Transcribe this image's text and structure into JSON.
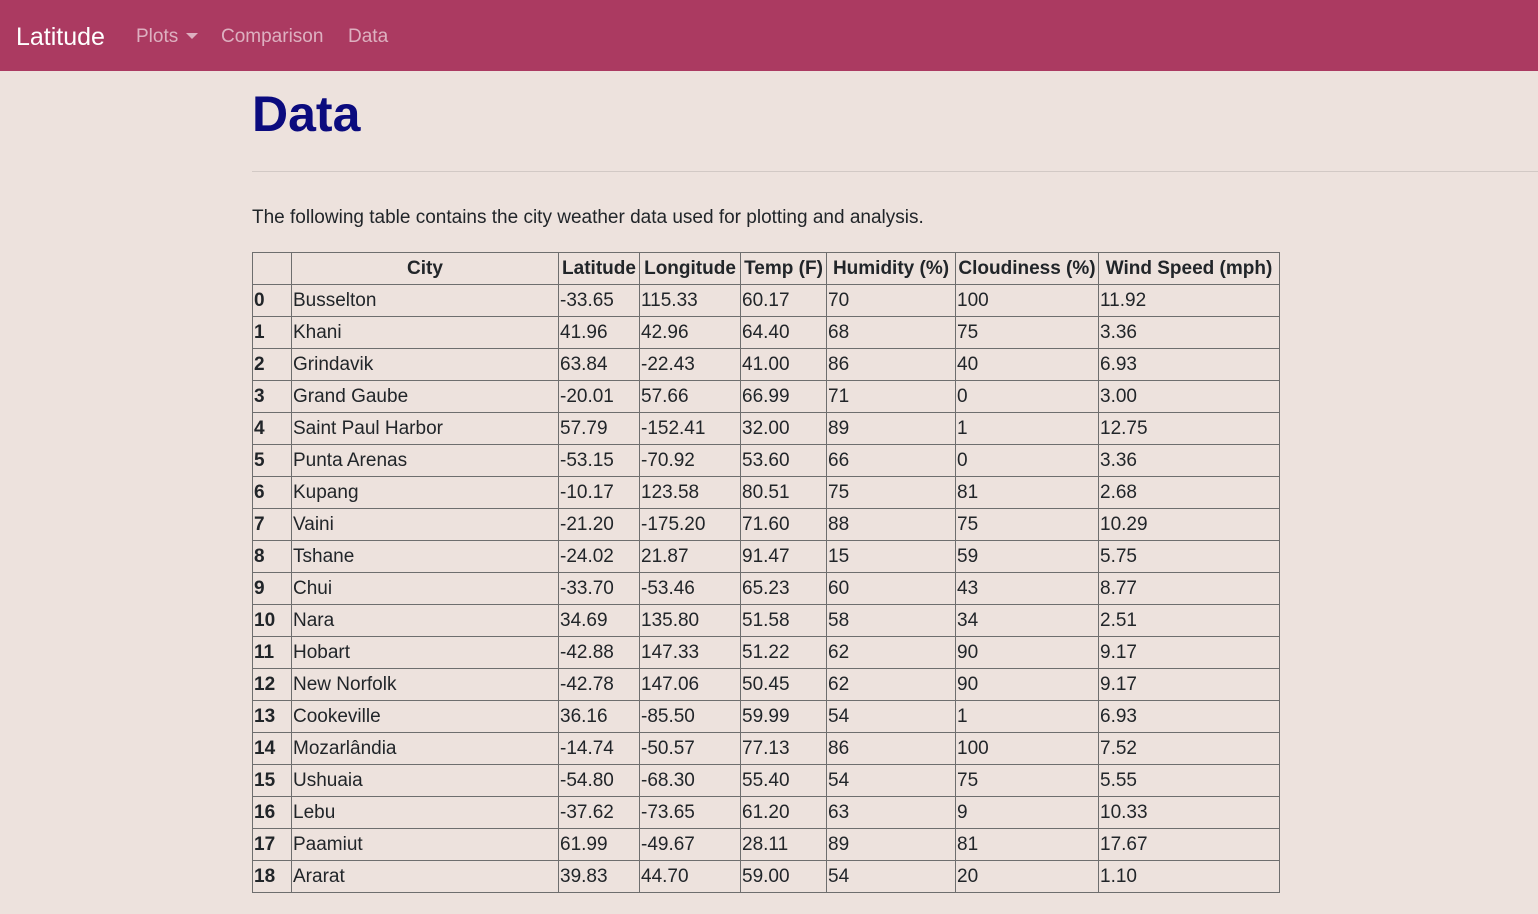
{
  "navbar": {
    "brand": "Latitude",
    "links": [
      {
        "label": "Plots"
      },
      {
        "label": "Comparison"
      },
      {
        "label": "Data"
      }
    ]
  },
  "page": {
    "title": "Data",
    "intro": "The following table contains the city weather data used for plotting and analysis."
  },
  "table": {
    "columns": [
      "",
      "City",
      "Latitude",
      "Longitude",
      "Temp (F)",
      "Humidity (%)",
      "Cloudiness (%)",
      "Wind Speed (mph)"
    ],
    "rows": [
      [
        "0",
        "Busselton",
        "-33.65",
        "115.33",
        "60.17",
        "70",
        "100",
        "11.92"
      ],
      [
        "1",
        "Khani",
        "41.96",
        "42.96",
        "64.40",
        "68",
        "75",
        "3.36"
      ],
      [
        "2",
        "Grindavik",
        "63.84",
        "-22.43",
        "41.00",
        "86",
        "40",
        "6.93"
      ],
      [
        "3",
        "Grand Gaube",
        "-20.01",
        "57.66",
        "66.99",
        "71",
        "0",
        "3.00"
      ],
      [
        "4",
        "Saint Paul Harbor",
        "57.79",
        "-152.41",
        "32.00",
        "89",
        "1",
        "12.75"
      ],
      [
        "5",
        "Punta Arenas",
        "-53.15",
        "-70.92",
        "53.60",
        "66",
        "0",
        "3.36"
      ],
      [
        "6",
        "Kupang",
        "-10.17",
        "123.58",
        "80.51",
        "75",
        "81",
        "2.68"
      ],
      [
        "7",
        "Vaini",
        "-21.20",
        "-175.20",
        "71.60",
        "88",
        "75",
        "10.29"
      ],
      [
        "8",
        "Tshane",
        "-24.02",
        "21.87",
        "91.47",
        "15",
        "59",
        "5.75"
      ],
      [
        "9",
        "Chui",
        "-33.70",
        "-53.46",
        "65.23",
        "60",
        "43",
        "8.77"
      ],
      [
        "10",
        "Nara",
        "34.69",
        "135.80",
        "51.58",
        "58",
        "34",
        "2.51"
      ],
      [
        "11",
        "Hobart",
        "-42.88",
        "147.33",
        "51.22",
        "62",
        "90",
        "9.17"
      ],
      [
        "12",
        "New Norfolk",
        "-42.78",
        "147.06",
        "50.45",
        "62",
        "90",
        "9.17"
      ],
      [
        "13",
        "Cookeville",
        "36.16",
        "-85.50",
        "59.99",
        "54",
        "1",
        "6.93"
      ],
      [
        "14",
        "Mozarlândia",
        "-14.74",
        "-50.57",
        "77.13",
        "86",
        "100",
        "7.52"
      ],
      [
        "15",
        "Ushuaia",
        "-54.80",
        "-68.30",
        "55.40",
        "54",
        "75",
        "5.55"
      ],
      [
        "16",
        "Lebu",
        "-37.62",
        "-73.65",
        "61.20",
        "63",
        "9",
        "10.33"
      ],
      [
        "17",
        "Paamiut",
        "61.99",
        "-49.67",
        "28.11",
        "89",
        "81",
        "17.67"
      ],
      [
        "18",
        "Ararat",
        "39.83",
        "44.70",
        "59.00",
        "54",
        "20",
        "1.10"
      ]
    ]
  }
}
